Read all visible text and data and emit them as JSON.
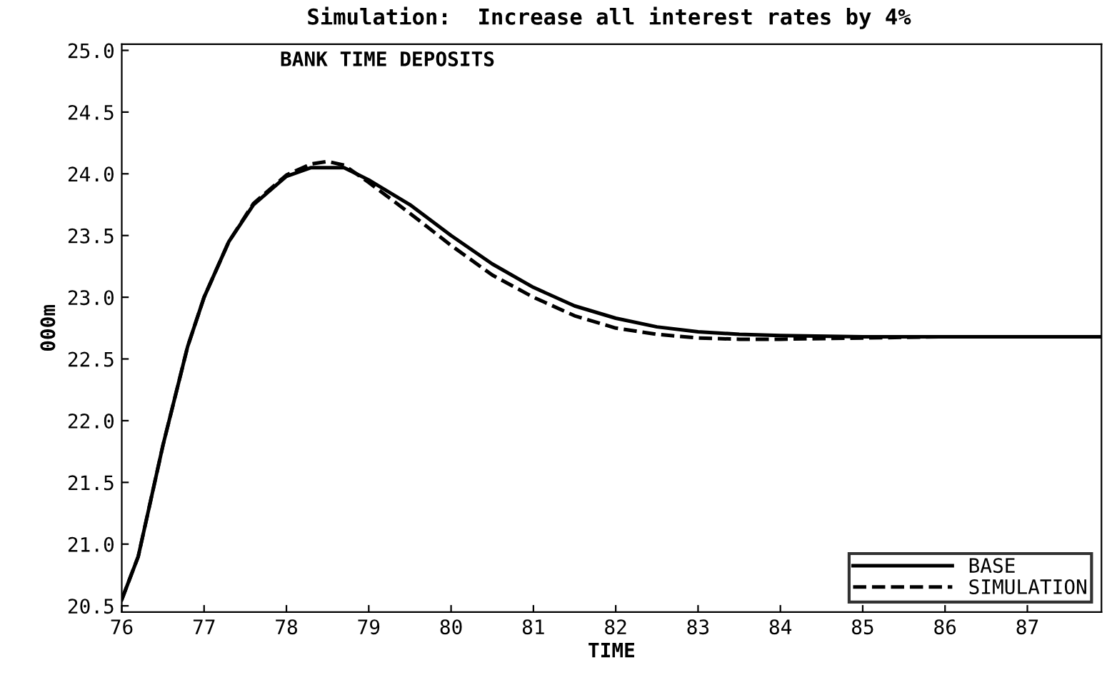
{
  "chart_data": {
    "type": "line",
    "title": "Simulation:  Increase all interest rates by 4%",
    "subtitle": "BANK TIME DEPOSITS",
    "xlabel": "TIME",
    "ylabel": "000m",
    "xlim": [
      76,
      87.9
    ],
    "xticks": [
      76,
      77,
      78,
      79,
      80,
      81,
      82,
      83,
      84,
      85,
      86,
      87
    ],
    "ylim": [
      20.45,
      25.05
    ],
    "yticks": [
      {
        "value": 20.5,
        "label": "20.5"
      },
      {
        "value": 21,
        "label": "21.0"
      },
      {
        "value": 21.5,
        "label": "21.5"
      },
      {
        "value": 22,
        "label": "22.0"
      },
      {
        "value": 22.5,
        "label": "22.5"
      },
      {
        "value": 23,
        "label": "23.0"
      },
      {
        "value": 23.5,
        "label": "23.5"
      },
      {
        "value": 24,
        "label": "24.0"
      },
      {
        "value": 24.5,
        "label": "24.5"
      },
      {
        "value": 25,
        "label": "25.0"
      }
    ],
    "grid": false,
    "legend": "bottom right",
    "marker": "none",
    "series": [
      {
        "name": "BASE",
        "color": "#000000",
        "line_style": "solid",
        "x": [
          76.0,
          76.2,
          76.5,
          76.8,
          77.0,
          77.3,
          77.6,
          78.0,
          78.3,
          78.7,
          79.0,
          79.5,
          80.0,
          80.5,
          81.0,
          81.5,
          82.0,
          82.5,
          83.0,
          83.5,
          84,
          85,
          86,
          87,
          87.9
        ],
        "values": [
          20.55,
          20.9,
          21.8,
          22.6,
          23.0,
          23.45,
          23.75,
          23.98,
          24.05,
          24.05,
          23.95,
          23.75,
          23.5,
          23.27,
          23.08,
          22.93,
          22.83,
          22.76,
          22.72,
          22.7,
          22.69,
          22.68,
          22.68,
          22.68,
          22.68
        ]
      },
      {
        "name": "SIMULATION",
        "color": "#000000",
        "line_style": "dashed",
        "x": [
          76.0,
          76.2,
          76.5,
          76.8,
          77.0,
          77.3,
          77.6,
          78.0,
          78.3,
          78.5,
          78.7,
          79.0,
          79.5,
          80.0,
          80.5,
          81.0,
          81.5,
          82.0,
          82.5,
          83.0,
          83.5,
          84,
          85,
          86,
          87,
          87.9
        ],
        "values": [
          20.55,
          20.9,
          21.8,
          22.6,
          23.0,
          23.45,
          23.76,
          23.99,
          24.08,
          24.1,
          24.07,
          23.93,
          23.68,
          23.42,
          23.18,
          23.0,
          22.85,
          22.75,
          22.7,
          22.67,
          22.66,
          22.66,
          22.67,
          22.68,
          22.68,
          22.68
        ]
      }
    ]
  }
}
